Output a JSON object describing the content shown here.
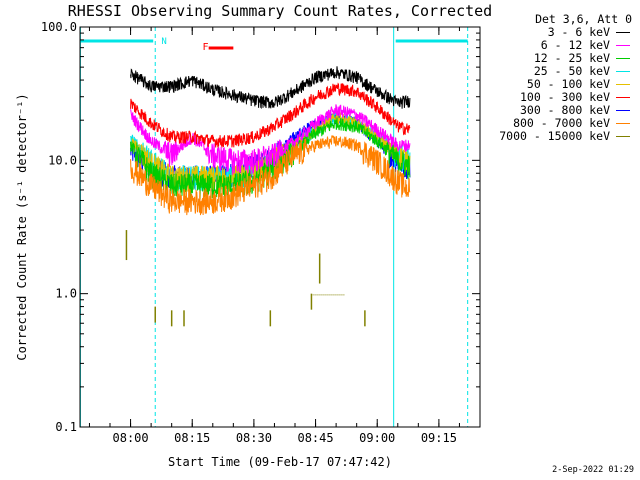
{
  "chart_data": {
    "type": "line",
    "title": "RHESSI Observing Summary Count Rates, Corrected",
    "xlabel": "Start Time (09-Feb-17 07:47:42)",
    "ylabel": "Corrected Count Rate (s⁻¹ detector⁻¹)",
    "y_scale": "log",
    "ylim": [
      0.1,
      100.0
    ],
    "xlim": [
      "07:47:42",
      "09:25:00"
    ],
    "x_ticks": [
      "08:00",
      "08:15",
      "08:30",
      "08:45",
      "09:00",
      "09:15"
    ],
    "y_ticks": [
      "0.1",
      "1.0",
      "10.0",
      "100.0"
    ],
    "legend_header": "Det 3,6, Att 0",
    "legend_placement": "right",
    "series": [
      {
        "name": "3 - 6 keV",
        "color": "#000000",
        "x": [
          "08:00",
          "08:05",
          "08:10",
          "08:15",
          "08:20",
          "08:25",
          "08:30",
          "08:35",
          "08:40",
          "08:45",
          "08:50",
          "08:55",
          "09:00",
          "09:05",
          "09:08"
        ],
        "y": [
          45,
          36,
          36,
          40,
          34,
          31,
          28,
          27,
          33,
          42,
          46,
          42,
          33,
          27,
          28
        ]
      },
      {
        "name": "6 - 12 keV",
        "color": "#ff00ff",
        "x": [
          "08:00",
          "08:05",
          "08:10",
          "08:15",
          "08:20",
          "08:25",
          "08:30",
          "08:35",
          "08:40",
          "08:45",
          "08:50",
          "08:55",
          "09:00",
          "09:05",
          "09:08"
        ],
        "y": [
          22,
          14,
          11,
          15,
          11,
          10,
          10,
          11,
          14,
          19,
          24,
          22,
          17,
          13,
          13
        ]
      },
      {
        "name": "12 - 25 keV",
        "color": "#00cc00",
        "x": [
          "08:00",
          "08:05",
          "08:10",
          "08:15",
          "08:20",
          "08:25",
          "08:30",
          "08:35",
          "08:40",
          "08:45",
          "08:50",
          "08:55",
          "09:00",
          "09:05",
          "09:08"
        ],
        "y": [
          13,
          8,
          6.5,
          6.5,
          6.5,
          6.5,
          7,
          9,
          12,
          16,
          19,
          18,
          14,
          10,
          9
        ]
      },
      {
        "name": "25 - 50 keV",
        "color": "#00e5e5",
        "x": [
          "08:00",
          "08:05",
          "08:10",
          "08:15",
          "08:20",
          "08:25",
          "08:30",
          "08:35",
          "08:40",
          "08:45",
          "08:50",
          "08:55",
          "09:00",
          "09:05",
          "09:08"
        ],
        "y": [
          15,
          10,
          7.5,
          7.5,
          7.5,
          7.5,
          8,
          10,
          13,
          17,
          21,
          19,
          15,
          11,
          10
        ]
      },
      {
        "name": "50 - 100 keV",
        "color": "#e5c000",
        "x": [
          "08:00",
          "08:05",
          "08:10",
          "08:15",
          "08:20",
          "08:25",
          "08:30",
          "08:35",
          "08:40",
          "08:45",
          "08:50",
          "08:55",
          "09:00",
          "09:05",
          "09:08"
        ],
        "y": [
          14,
          9.5,
          7.5,
          7.5,
          7.5,
          7.5,
          8,
          10,
          13,
          17,
          21,
          19,
          15,
          11,
          10
        ]
      },
      {
        "name": "100 - 300 keV",
        "color": "#ff0000",
        "x": [
          "08:00",
          "08:05",
          "08:10",
          "08:15",
          "08:20",
          "08:25",
          "08:30",
          "08:35",
          "08:40",
          "08:45",
          "08:50",
          "08:55",
          "09:00",
          "09:05",
          "09:08"
        ],
        "y": [
          27,
          19,
          15,
          15,
          14,
          14,
          15,
          18,
          23,
          30,
          35,
          33,
          25,
          18,
          17
        ]
      },
      {
        "name": "300 - 800 keV",
        "color": "#0000ff",
        "x": [
          "08:00",
          "08:05",
          "08:10",
          "08:15",
          "08:20",
          "08:25",
          "08:30",
          "08:35",
          "08:40",
          "08:45",
          "08:50",
          "08:55",
          "09:00",
          "09:05",
          "09:08"
        ],
        "y": [
          12,
          9,
          7.5,
          7.5,
          7.5,
          8,
          9,
          11,
          15,
          19,
          21,
          19,
          14,
          10,
          9
        ]
      },
      {
        "name": "800 - 7000 keV",
        "color": "#ff8000",
        "x": [
          "08:00",
          "08:05",
          "08:10",
          "08:15",
          "08:20",
          "08:25",
          "08:30",
          "08:35",
          "08:40",
          "08:45",
          "08:50",
          "08:55",
          "09:00",
          "09:05",
          "09:08"
        ],
        "y": [
          9,
          6.5,
          5,
          5,
          5,
          5.5,
          6.5,
          8,
          11,
          13,
          14,
          13,
          10,
          7,
          6
        ]
      },
      {
        "name": "7000 - 15000 keV",
        "color": "#808000",
        "x": [
          "07:59",
          "08:06",
          "08:10",
          "08:13",
          "08:34",
          "08:44",
          "08:46",
          "08:57"
        ],
        "y": [
          3.0,
          0.8,
          0.75,
          0.75,
          0.75,
          1.0,
          2.0,
          0.75
        ]
      }
    ],
    "annotations": [
      {
        "text": "N",
        "color": "#00e5e5",
        "x": "08:07"
      },
      {
        "text": "F",
        "color": "#ff0000",
        "x": "08:17"
      }
    ]
  },
  "footer": {
    "date": "2-Sep-2022 01:29"
  }
}
